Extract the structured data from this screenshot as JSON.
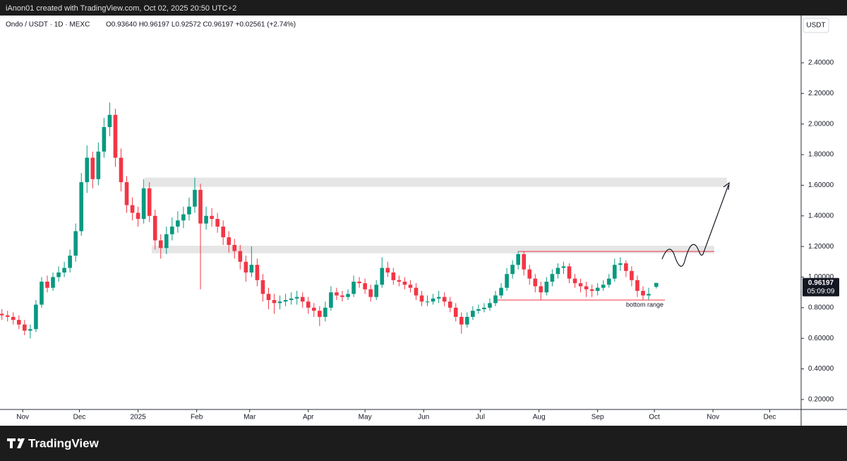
{
  "header": "iAnon01 created with TradingView.com, Oct 02, 2025 20:50 UTC+2",
  "brand": "TradingView",
  "chart_data": {
    "type": "candlestick",
    "title": "Ondo / USDT · 1D · MEXC",
    "quote": "O0.93640 H0.96197 L0.92572 C0.96197 +0.02561 (+2.74%)",
    "y_axis_label": "USDT",
    "countdown": "05:09:09",
    "up_color": "#089981",
    "down_color": "#f23645",
    "xlim": [
      -12,
      411.6
    ],
    "xticks": [
      {
        "value": 0,
        "label": "Nov"
      },
      {
        "value": 30,
        "label": "Dec"
      },
      {
        "value": 61,
        "label": "2025"
      },
      {
        "value": 92,
        "label": "Feb"
      },
      {
        "value": 120,
        "label": "Mar"
      },
      {
        "value": 151,
        "label": "Apr"
      },
      {
        "value": 181,
        "label": "May"
      },
      {
        "value": 212,
        "label": "Jun"
      },
      {
        "value": 242,
        "label": "Jul"
      },
      {
        "value": 273,
        "label": "Aug"
      },
      {
        "value": 304,
        "label": "Sep"
      },
      {
        "value": 334,
        "label": "Oct"
      },
      {
        "value": 365,
        "label": "Nov"
      },
      {
        "value": 395,
        "label": "Dec"
      }
    ],
    "ylim": [
      0.135,
      2.709
    ],
    "yticks": [
      {
        "value": 0.2,
        "label": "0.20000"
      },
      {
        "value": 0.4,
        "label": "0.40000"
      },
      {
        "value": 0.6,
        "label": "0.60000"
      },
      {
        "value": 0.8,
        "label": "0.80000"
      },
      {
        "value": 1.0,
        "label": "1.00000"
      },
      {
        "value": 1.2,
        "label": "1.20000"
      },
      {
        "value": 1.4,
        "label": "1.40000"
      },
      {
        "value": 1.6,
        "label": "1.60000"
      },
      {
        "value": 1.8,
        "label": "1.80000"
      },
      {
        "value": 2.0,
        "label": "2.00000"
      },
      {
        "value": 2.2,
        "label": "2.20000"
      },
      {
        "value": 2.4,
        "label": "2.40000"
      }
    ],
    "zones": [
      {
        "x": [
          64.5,
          372.4
        ],
        "y": [
          1.59,
          1.65
        ],
        "color": "#e6e6e6"
      },
      {
        "x": [
          68.2,
          365.7
        ],
        "y": [
          1.155,
          1.205
        ],
        "color": "#e6e6e6"
      }
    ],
    "hlines": [
      {
        "x": [
          262.3,
          365.7
        ],
        "y": 1.168,
        "color": "#f23645"
      },
      {
        "x": [
          251.1,
          339.6
        ],
        "y": 0.85,
        "color": "#f23645",
        "label": "bottom range"
      }
    ],
    "series": [
      {
        "x": [
          -11,
          -8,
          -5,
          -2,
          1,
          4,
          7,
          10,
          13,
          16,
          19,
          22,
          25,
          28,
          31,
          34,
          37,
          40,
          43,
          46,
          49,
          52,
          55,
          58,
          61,
          64,
          67,
          70,
          73,
          76,
          79,
          82,
          85,
          88,
          91,
          94,
          97,
          100,
          103,
          106,
          109,
          112,
          115,
          118,
          121,
          124,
          127,
          130,
          133,
          136,
          139,
          142,
          145,
          148,
          151,
          154,
          157,
          160,
          163,
          166,
          169,
          172,
          175,
          178,
          181,
          184,
          187,
          190,
          193,
          196,
          199,
          202,
          205,
          208,
          211,
          214,
          217,
          220,
          223,
          226,
          229,
          232,
          235,
          238,
          241,
          244,
          247,
          250,
          253,
          256,
          259,
          262,
          265,
          268,
          271,
          274,
          277,
          280,
          283,
          286,
          289,
          292,
          295,
          298,
          301,
          304,
          307,
          310,
          313,
          316,
          319,
          322,
          325,
          328,
          331,
          335
        ],
        "ohlc": [
          [
            0.76,
            0.79,
            0.72,
            0.75
          ],
          [
            0.75,
            0.78,
            0.71,
            0.74
          ],
          [
            0.74,
            0.77,
            0.69,
            0.72
          ],
          [
            0.72,
            0.75,
            0.66,
            0.69
          ],
          [
            0.69,
            0.72,
            0.62,
            0.65
          ],
          [
            0.65,
            0.69,
            0.6,
            0.66
          ],
          [
            0.66,
            0.85,
            0.64,
            0.82
          ],
          [
            0.82,
            1.0,
            0.8,
            0.97
          ],
          [
            0.97,
            1.01,
            0.9,
            0.93
          ],
          [
            0.93,
            1.03,
            0.91,
            1.0
          ],
          [
            1.0,
            1.07,
            0.97,
            1.03
          ],
          [
            1.03,
            1.1,
            1.0,
            1.06
          ],
          [
            1.06,
            1.18,
            1.03,
            1.14
          ],
          [
            1.14,
            1.35,
            1.1,
            1.3
          ],
          [
            1.3,
            1.68,
            1.27,
            1.62
          ],
          [
            1.62,
            1.86,
            1.55,
            1.78
          ],
          [
            1.78,
            1.82,
            1.58,
            1.64
          ],
          [
            1.64,
            1.88,
            1.6,
            1.82
          ],
          [
            1.82,
            2.04,
            1.78,
            1.98
          ],
          [
            1.98,
            2.14,
            1.92,
            2.06
          ],
          [
            2.06,
            2.1,
            1.72,
            1.78
          ],
          [
            1.78,
            1.84,
            1.56,
            1.62
          ],
          [
            1.62,
            1.66,
            1.42,
            1.47
          ],
          [
            1.47,
            1.52,
            1.37,
            1.42
          ],
          [
            1.42,
            1.46,
            1.33,
            1.38
          ],
          [
            1.38,
            1.64,
            1.35,
            1.58
          ],
          [
            1.58,
            1.62,
            1.36,
            1.4
          ],
          [
            1.4,
            1.44,
            1.18,
            1.24
          ],
          [
            1.24,
            1.28,
            1.12,
            1.19
          ],
          [
            1.19,
            1.33,
            1.15,
            1.28
          ],
          [
            1.28,
            1.39,
            1.24,
            1.33
          ],
          [
            1.33,
            1.43,
            1.29,
            1.37
          ],
          [
            1.37,
            1.46,
            1.32,
            1.41
          ],
          [
            1.41,
            1.52,
            1.37,
            1.46
          ],
          [
            1.46,
            1.65,
            1.42,
            1.57
          ],
          [
            1.57,
            1.61,
            0.92,
            1.35
          ],
          [
            1.35,
            1.46,
            1.31,
            1.4
          ],
          [
            1.4,
            1.45,
            1.33,
            1.38
          ],
          [
            1.38,
            1.42,
            1.29,
            1.33
          ],
          [
            1.33,
            1.37,
            1.21,
            1.26
          ],
          [
            1.26,
            1.3,
            1.16,
            1.21
          ],
          [
            1.21,
            1.25,
            1.12,
            1.17
          ],
          [
            1.17,
            1.21,
            1.05,
            1.1
          ],
          [
            1.1,
            1.14,
            0.97,
            1.03
          ],
          [
            1.03,
            1.2,
            1.0,
            1.08
          ],
          [
            1.08,
            1.12,
            0.94,
            0.98
          ],
          [
            0.98,
            1.02,
            0.84,
            0.89
          ],
          [
            0.89,
            0.93,
            0.79,
            0.85
          ],
          [
            0.85,
            0.89,
            0.76,
            0.83
          ],
          [
            0.83,
            0.88,
            0.79,
            0.84
          ],
          [
            0.84,
            0.89,
            0.81,
            0.85
          ],
          [
            0.85,
            0.9,
            0.82,
            0.86
          ],
          [
            0.86,
            0.91,
            0.82,
            0.87
          ],
          [
            0.87,
            0.9,
            0.8,
            0.84
          ],
          [
            0.84,
            0.87,
            0.76,
            0.8
          ],
          [
            0.8,
            0.83,
            0.74,
            0.78
          ],
          [
            0.78,
            0.81,
            0.68,
            0.74
          ],
          [
            0.74,
            0.84,
            0.71,
            0.8
          ],
          [
            0.8,
            0.94,
            0.78,
            0.9
          ],
          [
            0.9,
            0.93,
            0.85,
            0.88
          ],
          [
            0.88,
            0.91,
            0.84,
            0.87
          ],
          [
            0.87,
            0.92,
            0.85,
            0.89
          ],
          [
            0.89,
            1.01,
            0.87,
            0.97
          ],
          [
            0.97,
            1.0,
            0.93,
            0.96
          ],
          [
            0.96,
            0.99,
            0.89,
            0.92
          ],
          [
            0.92,
            0.95,
            0.84,
            0.87
          ],
          [
            0.87,
            0.98,
            0.85,
            0.95
          ],
          [
            0.95,
            1.13,
            0.93,
            1.06
          ],
          [
            1.06,
            1.1,
            1.0,
            1.03
          ],
          [
            1.03,
            1.06,
            0.95,
            0.98
          ],
          [
            0.98,
            1.01,
            0.94,
            0.97
          ],
          [
            0.97,
            1.0,
            0.92,
            0.95
          ],
          [
            0.95,
            0.98,
            0.9,
            0.93
          ],
          [
            0.93,
            0.96,
            0.85,
            0.88
          ],
          [
            0.88,
            0.91,
            0.81,
            0.84
          ],
          [
            0.84,
            0.88,
            0.81,
            0.84
          ],
          [
            0.84,
            0.89,
            0.82,
            0.86
          ],
          [
            0.86,
            0.91,
            0.83,
            0.87
          ],
          [
            0.87,
            0.9,
            0.81,
            0.84
          ],
          [
            0.84,
            0.87,
            0.77,
            0.8
          ],
          [
            0.8,
            0.83,
            0.71,
            0.74
          ],
          [
            0.74,
            0.77,
            0.63,
            0.69
          ],
          [
            0.69,
            0.77,
            0.67,
            0.74
          ],
          [
            0.74,
            0.81,
            0.72,
            0.78
          ],
          [
            0.78,
            0.82,
            0.76,
            0.79
          ],
          [
            0.79,
            0.83,
            0.77,
            0.8
          ],
          [
            0.8,
            0.86,
            0.78,
            0.83
          ],
          [
            0.83,
            0.91,
            0.81,
            0.88
          ],
          [
            0.88,
            0.96,
            0.86,
            0.93
          ],
          [
            0.93,
            1.06,
            0.91,
            1.02
          ],
          [
            1.02,
            1.11,
            0.99,
            1.08
          ],
          [
            1.08,
            1.17,
            1.05,
            1.15
          ],
          [
            1.15,
            1.17,
            1.01,
            1.05
          ],
          [
            1.05,
            1.08,
            0.95,
            0.99
          ],
          [
            0.99,
            1.02,
            0.9,
            0.94
          ],
          [
            0.94,
            0.97,
            0.85,
            0.9
          ],
          [
            0.9,
            1.0,
            0.88,
            0.97
          ],
          [
            0.97,
            1.05,
            0.94,
            1.02
          ],
          [
            1.02,
            1.09,
            0.99,
            1.06
          ],
          [
            1.06,
            1.1,
            1.02,
            1.07
          ],
          [
            1.07,
            1.09,
            0.96,
            0.99
          ],
          [
            0.99,
            1.02,
            0.93,
            0.96
          ],
          [
            0.96,
            0.99,
            0.9,
            0.94
          ],
          [
            0.94,
            0.97,
            0.87,
            0.92
          ],
          [
            0.92,
            0.95,
            0.87,
            0.91
          ],
          [
            0.91,
            0.96,
            0.88,
            0.93
          ],
          [
            0.93,
            0.98,
            0.91,
            0.95
          ],
          [
            0.95,
            1.02,
            0.93,
            0.99
          ],
          [
            0.99,
            1.12,
            0.97,
            1.08
          ],
          [
            1.08,
            1.13,
            1.04,
            1.09
          ],
          [
            1.09,
            1.11,
            1.0,
            1.04
          ],
          [
            1.04,
            1.07,
            0.94,
            0.98
          ],
          [
            0.98,
            1.01,
            0.87,
            0.91
          ],
          [
            0.91,
            0.94,
            0.85,
            0.88
          ],
          [
            0.88,
            0.93,
            0.85,
            0.89
          ],
          [
            0.9364,
            0.96197,
            0.92572,
            0.96197
          ]
        ]
      }
    ]
  }
}
